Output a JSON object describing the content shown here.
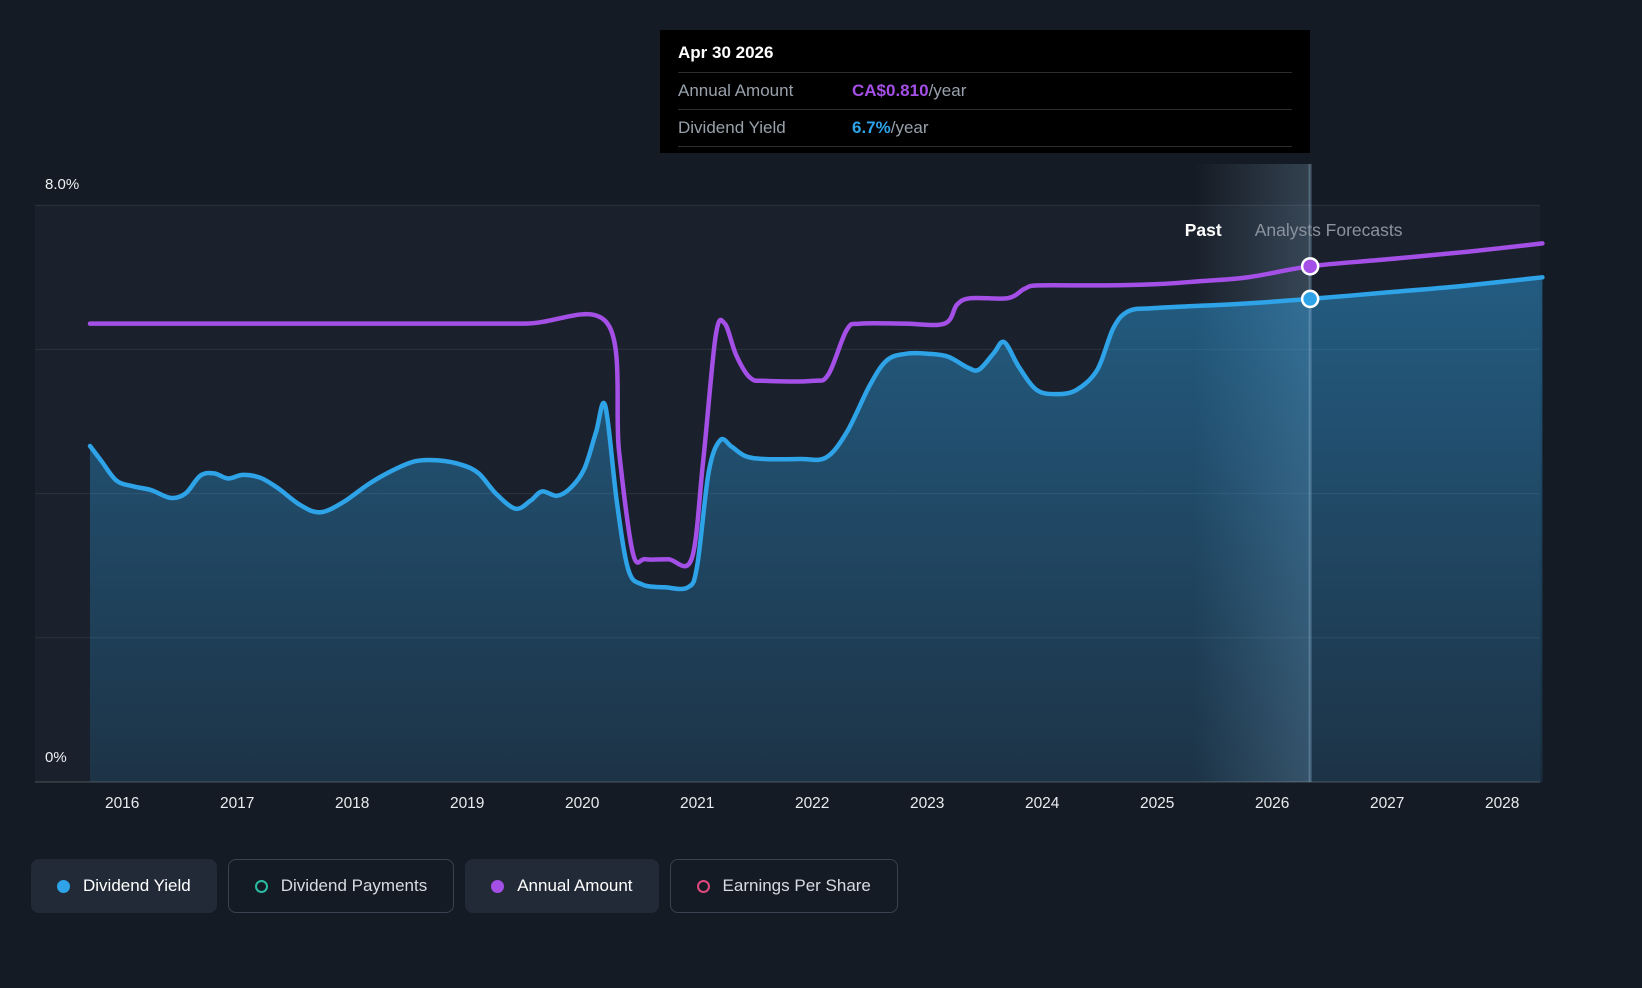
{
  "colors": {
    "bg": "#151B24",
    "plot-bg": "#1A212C",
    "yield-blue": "#2EA3E8",
    "amount-purple": "#A44FE6",
    "payments-teal": "#2BBBA2",
    "eps-pink": "#E0487E"
  },
  "tooltip": {
    "date": "Apr 30 2026",
    "rows": [
      {
        "label": "Annual Amount",
        "value": "CA$0.810",
        "suffix": "/year"
      },
      {
        "label": "Dividend Yield",
        "value": "6.7%",
        "suffix": "/year"
      }
    ]
  },
  "annotations": {
    "past_label": "Past",
    "forecast_label": "Analysts Forecasts"
  },
  "legend": {
    "items": [
      {
        "label": "Dividend Yield",
        "marker": "filled",
        "color": "#2EA3E8",
        "boxed": true
      },
      {
        "label": "Dividend Payments",
        "marker": "ring",
        "color": "#2BBBA2",
        "boxed": false
      },
      {
        "label": "Annual Amount",
        "marker": "filled",
        "color": "#A44FE6",
        "boxed": true
      },
      {
        "label": "Earnings Per Share",
        "marker": "ring",
        "color": "#E0487E",
        "boxed": false
      }
    ]
  },
  "chart_data": {
    "type": "area",
    "x_axis": {
      "ticks": [
        2016,
        2017,
        2018,
        2019,
        2020,
        2021,
        2022,
        2023,
        2024,
        2025,
        2026,
        2027,
        2028
      ],
      "range": [
        2015.72,
        2028.35
      ]
    },
    "y_axis": {
      "unit": "%",
      "range": [
        0,
        8
      ],
      "top_label": "8.0%",
      "bottom_label": "0%",
      "gridlines": [
        2,
        4,
        6,
        8
      ]
    },
    "divider_year": 2025.7,
    "cursor": {
      "date": "Apr 30 2026",
      "year": 2026.33,
      "dividend_yield_pct": 6.7,
      "annual_amount_cad_per_year": 0.81
    },
    "series": [
      {
        "name": "Dividend Yield",
        "unit": "%",
        "color": "#2EA3E8",
        "axis_scale": 1,
        "area_fill": true,
        "points": [
          [
            2015.72,
            4.66
          ],
          [
            2015.82,
            4.45
          ],
          [
            2015.95,
            4.18
          ],
          [
            2016.1,
            4.1
          ],
          [
            2016.25,
            4.05
          ],
          [
            2016.42,
            3.94
          ],
          [
            2016.55,
            4.0
          ],
          [
            2016.68,
            4.25
          ],
          [
            2016.8,
            4.28
          ],
          [
            2016.92,
            4.21
          ],
          [
            2017.05,
            4.26
          ],
          [
            2017.2,
            4.22
          ],
          [
            2017.35,
            4.08
          ],
          [
            2017.55,
            3.84
          ],
          [
            2017.72,
            3.74
          ],
          [
            2017.92,
            3.88
          ],
          [
            2018.15,
            4.14
          ],
          [
            2018.35,
            4.32
          ],
          [
            2018.55,
            4.45
          ],
          [
            2018.75,
            4.46
          ],
          [
            2018.95,
            4.4
          ],
          [
            2019.1,
            4.28
          ],
          [
            2019.25,
            4.0
          ],
          [
            2019.42,
            3.79
          ],
          [
            2019.55,
            3.9
          ],
          [
            2019.65,
            4.03
          ],
          [
            2019.78,
            3.97
          ],
          [
            2019.9,
            4.08
          ],
          [
            2020.02,
            4.35
          ],
          [
            2020.12,
            4.85
          ],
          [
            2020.2,
            5.22
          ],
          [
            2020.3,
            3.9
          ],
          [
            2020.4,
            2.95
          ],
          [
            2020.52,
            2.74
          ],
          [
            2020.72,
            2.7
          ],
          [
            2020.92,
            2.7
          ],
          [
            2021.0,
            3.0
          ],
          [
            2021.1,
            4.3
          ],
          [
            2021.2,
            4.74
          ],
          [
            2021.3,
            4.65
          ],
          [
            2021.42,
            4.52
          ],
          [
            2021.58,
            4.48
          ],
          [
            2021.9,
            4.48
          ],
          [
            2022.12,
            4.5
          ],
          [
            2022.3,
            4.85
          ],
          [
            2022.5,
            5.5
          ],
          [
            2022.65,
            5.85
          ],
          [
            2022.82,
            5.94
          ],
          [
            2023.0,
            5.94
          ],
          [
            2023.18,
            5.9
          ],
          [
            2023.35,
            5.75
          ],
          [
            2023.45,
            5.72
          ],
          [
            2023.58,
            5.95
          ],
          [
            2023.67,
            6.1
          ],
          [
            2023.8,
            5.75
          ],
          [
            2023.95,
            5.44
          ],
          [
            2024.12,
            5.38
          ],
          [
            2024.3,
            5.44
          ],
          [
            2024.48,
            5.72
          ],
          [
            2024.62,
            6.3
          ],
          [
            2024.75,
            6.53
          ],
          [
            2024.95,
            6.57
          ],
          [
            2025.3,
            6.6
          ],
          [
            2025.7,
            6.63
          ],
          [
            2026.33,
            6.7
          ],
          [
            2027.0,
            6.79
          ],
          [
            2027.65,
            6.88
          ],
          [
            2028.35,
            7.0
          ]
        ]
      },
      {
        "name": "Annual Amount",
        "unit": "CA$/year",
        "color": "#A44FE6",
        "axis_scale": 8.83,
        "area_fill": false,
        "points": [
          [
            2015.72,
            0.72
          ],
          [
            2016.5,
            0.72
          ],
          [
            2017.5,
            0.72
          ],
          [
            2018.5,
            0.72
          ],
          [
            2019.5,
            0.72
          ],
          [
            2020.22,
            0.72
          ],
          [
            2020.32,
            0.52
          ],
          [
            2020.44,
            0.36
          ],
          [
            2020.55,
            0.35
          ],
          [
            2020.75,
            0.35
          ],
          [
            2020.95,
            0.35
          ],
          [
            2021.05,
            0.5
          ],
          [
            2021.16,
            0.7
          ],
          [
            2021.24,
            0.72
          ],
          [
            2021.34,
            0.67
          ],
          [
            2021.46,
            0.635
          ],
          [
            2021.6,
            0.63
          ],
          [
            2022.0,
            0.63
          ],
          [
            2022.14,
            0.64
          ],
          [
            2022.3,
            0.71
          ],
          [
            2022.42,
            0.72
          ],
          [
            2022.8,
            0.72
          ],
          [
            2023.15,
            0.72
          ],
          [
            2023.26,
            0.75
          ],
          [
            2023.38,
            0.76
          ],
          [
            2023.7,
            0.76
          ],
          [
            2023.85,
            0.775
          ],
          [
            2023.97,
            0.78
          ],
          [
            2024.5,
            0.78
          ],
          [
            2025.0,
            0.782
          ],
          [
            2025.4,
            0.787
          ],
          [
            2025.8,
            0.793
          ],
          [
            2026.33,
            0.81
          ],
          [
            2027.0,
            0.821
          ],
          [
            2027.7,
            0.833
          ],
          [
            2028.35,
            0.846
          ]
        ]
      }
    ]
  }
}
